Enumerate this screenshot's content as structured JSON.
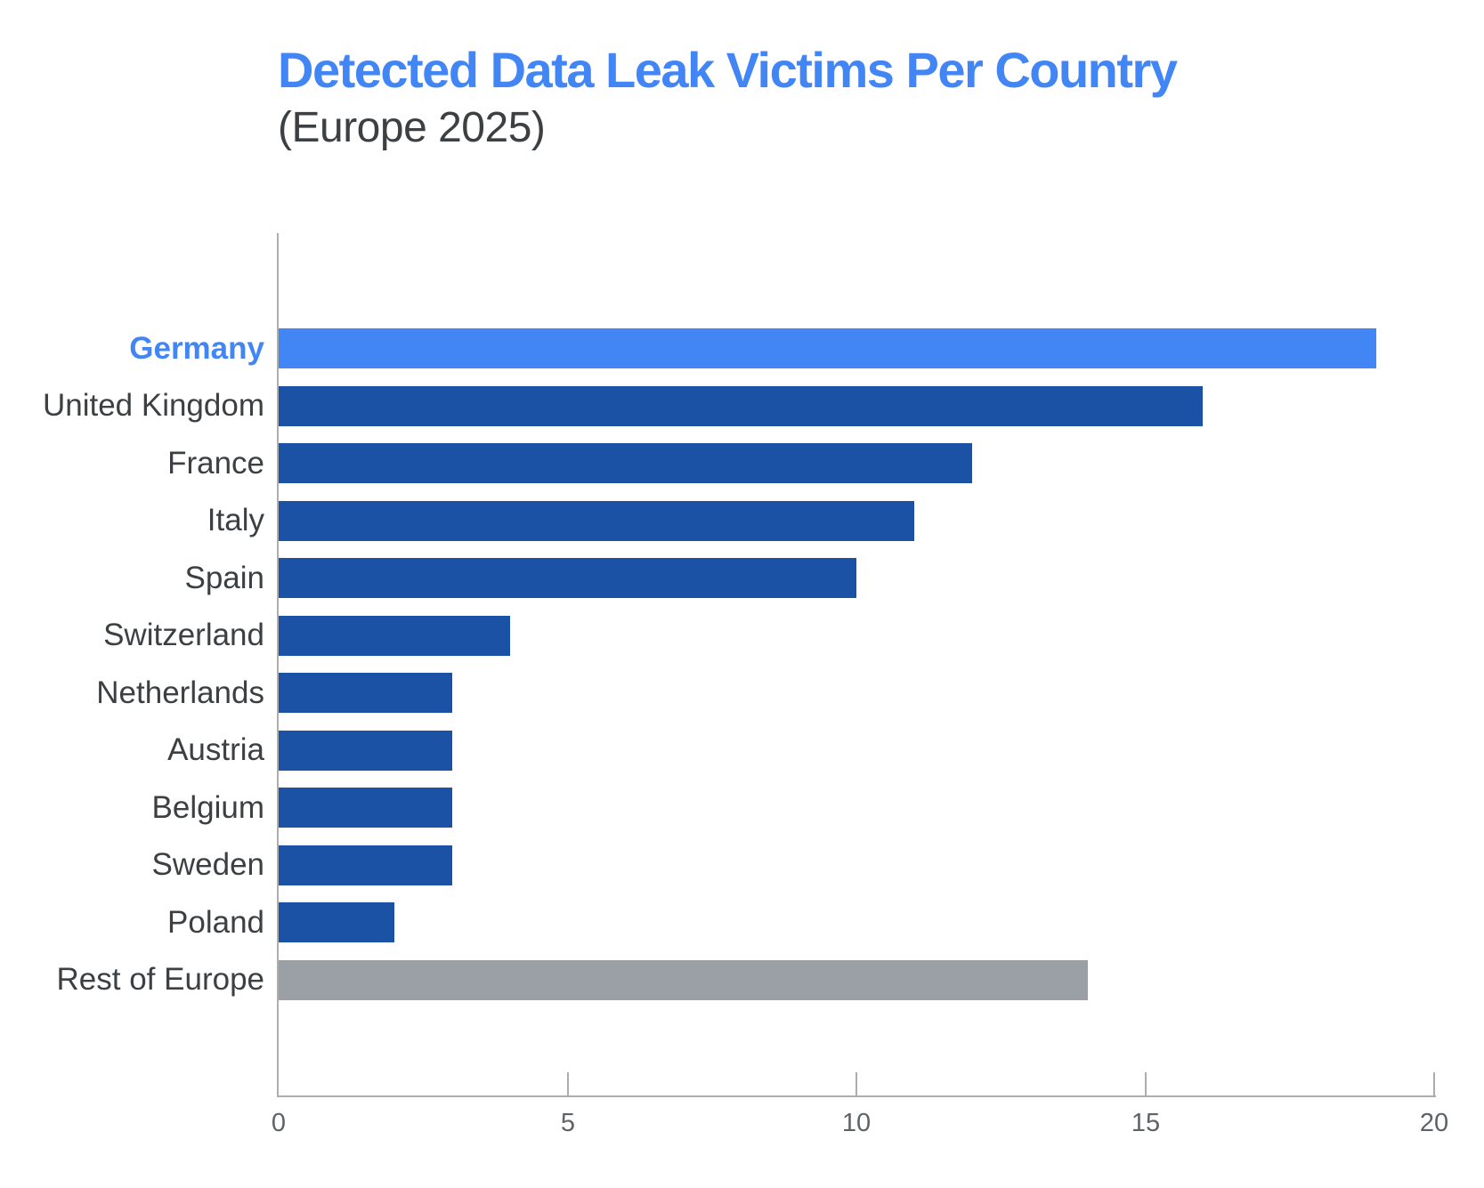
{
  "colors": {
    "title": "#4285F4",
    "subtitle": "#3C4043",
    "highlight_bar": "#4285F4",
    "default_bar": "#1C52A6",
    "muted_bar": "#9AA0A6",
    "axis_line": "#ADADAD",
    "category_label": "#3C4043",
    "highlight_label": "#4285F4",
    "tick_label": "#5F6368"
  },
  "chart_data": {
    "type": "bar",
    "orientation": "horizontal",
    "title": "Detected Data Leak Victims Per Country",
    "subtitle": "(Europe 2025)",
    "categories": [
      "Germany",
      "United Kingdom",
      "France",
      "Italy",
      "Spain",
      "Switzerland",
      "Netherlands",
      "Austria",
      "Belgium",
      "Sweden",
      "Poland",
      "Rest of Europe"
    ],
    "values": [
      19,
      16,
      12,
      11,
      10,
      4,
      3,
      3,
      3,
      3,
      2,
      14
    ],
    "bar_styles": [
      "highlight",
      "default",
      "default",
      "default",
      "default",
      "default",
      "default",
      "default",
      "default",
      "default",
      "default",
      "muted"
    ],
    "highlighted_category": "Germany",
    "muted_category": "Rest of Europe",
    "x_ticks": [
      0,
      5,
      10,
      15,
      20
    ],
    "xlim": [
      0,
      20
    ],
    "xlabel": "",
    "ylabel": "",
    "grid": false,
    "legend": false,
    "data_labels": false
  }
}
